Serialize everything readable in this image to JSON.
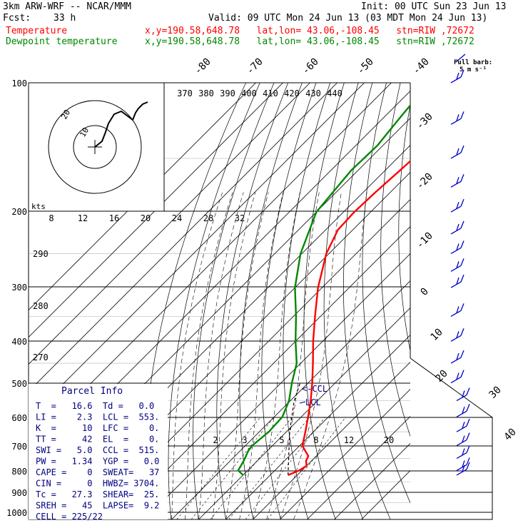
{
  "header": {
    "model": "3km ARW-WRF -- NCAR/MMM",
    "init": "Init: 00 UTC Sun 23 Jun 13",
    "fcst_label": "Fcst:",
    "fcst_value": "33 h",
    "valid": "Valid: 09 UTC Mon 24 Jun 13 (03 MDT Mon 24 Jun 13)",
    "temp_label": "Temperature",
    "dew_label": "Dewpoint temperature",
    "location": "x,y=190.58,648.78   lat,lon= 43.06,-108.45   stn=RIW ,72672",
    "full_barb": "Full barb:",
    "full_barb_value": "5 m s⁻¹"
  },
  "colors": {
    "temperature": "#ff0000",
    "dewpoint": "#008800",
    "parcel": "#000000",
    "info_text": "#000080",
    "wind": "#0000cc",
    "grid": "#000000"
  },
  "chart_data": {
    "type": "line",
    "skew_t": true,
    "pressure_levels": [
      "100",
      "200",
      "300",
      "400",
      "500",
      "600",
      "700",
      "800",
      "900",
      "1000"
    ],
    "isotherm_labels": [
      "-80",
      "-70",
      "-60",
      "-50",
      "-40",
      "-30",
      "-20",
      "-10",
      "0",
      "10",
      "20",
      "30",
      "40"
    ],
    "theta_labels": [
      "370",
      "380",
      "390",
      "400",
      "410",
      "420",
      "430",
      "440"
    ],
    "mixing_ratio_labels": [
      "2",
      "3",
      "5",
      "8",
      "12",
      "20"
    ],
    "height_scale_labels": [
      "8",
      "12",
      "16",
      "20",
      "24",
      "28",
      "32"
    ],
    "dry_adiabat_labels": [
      "290",
      "280",
      "270"
    ],
    "series": [
      {
        "name": "Temperature",
        "pressure": [
          820,
          800,
          780,
          760,
          740,
          720,
          700,
          650,
          600,
          550,
          500,
          450,
          400,
          350,
          300,
          250,
          220,
          200,
          180,
          160,
          140,
          120,
          105,
          100
        ],
        "values": [
          16.6,
          19,
          20,
          18,
          17,
          14,
          11,
          7,
          2.5,
          -2.5,
          -8.5,
          -15.5,
          -23.5,
          -32,
          -41.5,
          -51,
          -55.5,
          -56,
          -55.5,
          -54.5,
          -53.5,
          -52,
          -50.5,
          -50
        ]
      },
      {
        "name": "Dewpoint temperature",
        "pressure": [
          820,
          800,
          760,
          740,
          720,
          700,
          650,
          600,
          550,
          500,
          450,
          400,
          350,
          300,
          250,
          200,
          160,
          140,
          130,
          120,
          110,
          100
        ],
        "values": [
          0,
          -3.5,
          -5,
          -6,
          -7,
          -7.5,
          -6.5,
          -7,
          -10.5,
          -16,
          -21.5,
          -30,
          -39,
          -50,
          -60.5,
          -70,
          -72.5,
          -72,
          -73,
          -74,
          -75,
          -76
        ]
      }
    ],
    "parcel": {
      "pressure": [
        820,
        650,
        600,
        553,
        500
      ],
      "values": [
        16.6,
        1.2,
        -3.5,
        -8.3,
        -13
      ]
    },
    "wind_barbs": [
      "100",
      "125",
      "150",
      "175",
      "200",
      "225",
      "250",
      "275",
      "300",
      "350",
      "400",
      "450",
      "500",
      "550",
      "600",
      "650",
      "700",
      "750",
      "800",
      "820"
    ]
  },
  "hodograph": {
    "ring_labels": [
      "10",
      "20"
    ],
    "kts_label": "kts"
  },
  "markers": {
    "ccl": "<-CCL",
    "lcl": "LCL"
  },
  "parcel_info": {
    "title": "Parcel Info",
    "rows": [
      "T  =   16.6  Td =   0.0",
      "LI =    2.3  LCL =  553.",
      "K  =     10  LFC =    0.",
      "TT =     42  EL  =    0.",
      "SWI =   5.0  CCL =  515.",
      "PW =   1.34  YGP =   0.0",
      "CAPE =    0  SWEAT=   37",
      "CIN =     0  HWBZ= 3704.",
      "Tc =   27.3  SHEAR=  25.",
      "SREH =   45  LAPSE=  9.2",
      "CELL = 225/22"
    ]
  }
}
